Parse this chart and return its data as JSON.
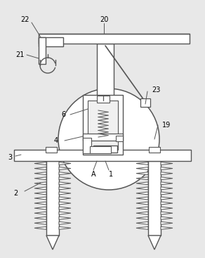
{
  "bg_color": "#e8e8e8",
  "line_color": "#555555",
  "line_width": 1.0,
  "label_fontsize": 7.0,
  "fig_width": 2.92,
  "fig_height": 3.67
}
